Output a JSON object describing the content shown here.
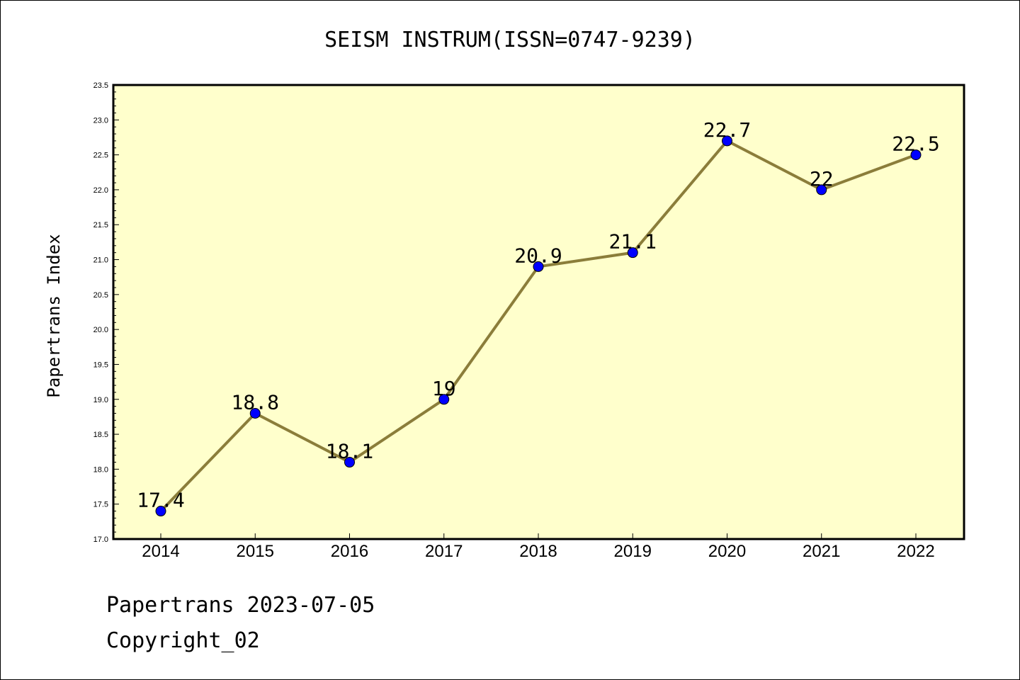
{
  "chart_data": {
    "type": "line",
    "title": "SEISM INSTRUM(ISSN=0747-9239)",
    "xlabel": "",
    "ylabel": "Papertrans Index",
    "categories": [
      "2014",
      "2015",
      "2016",
      "2017",
      "2018",
      "2019",
      "2020",
      "2021",
      "2022"
    ],
    "values": [
      17.4,
      18.8,
      18.1,
      19,
      20.9,
      21.1,
      22.7,
      22,
      22.5
    ],
    "data_labels": [
      "17.4",
      "18.8",
      "18.1",
      "19",
      "20.9",
      "21.1",
      "22.7",
      "22",
      "22.5"
    ],
    "ylim": [
      17.0,
      23.5
    ],
    "yticks": [
      "17.0",
      "17.5",
      "18.0",
      "18.5",
      "19.0",
      "19.5",
      "20.0",
      "20.5",
      "21.0",
      "21.5",
      "22.0",
      "22.5",
      "23.0",
      "23.5"
    ],
    "grid": false,
    "colors": {
      "plot_background": "#ffffcc",
      "line": "#8b7d3a",
      "marker": "#0000ff"
    }
  },
  "footer": {
    "line1": "Papertrans 2023-07-05",
    "line2": "Copyright_02"
  }
}
